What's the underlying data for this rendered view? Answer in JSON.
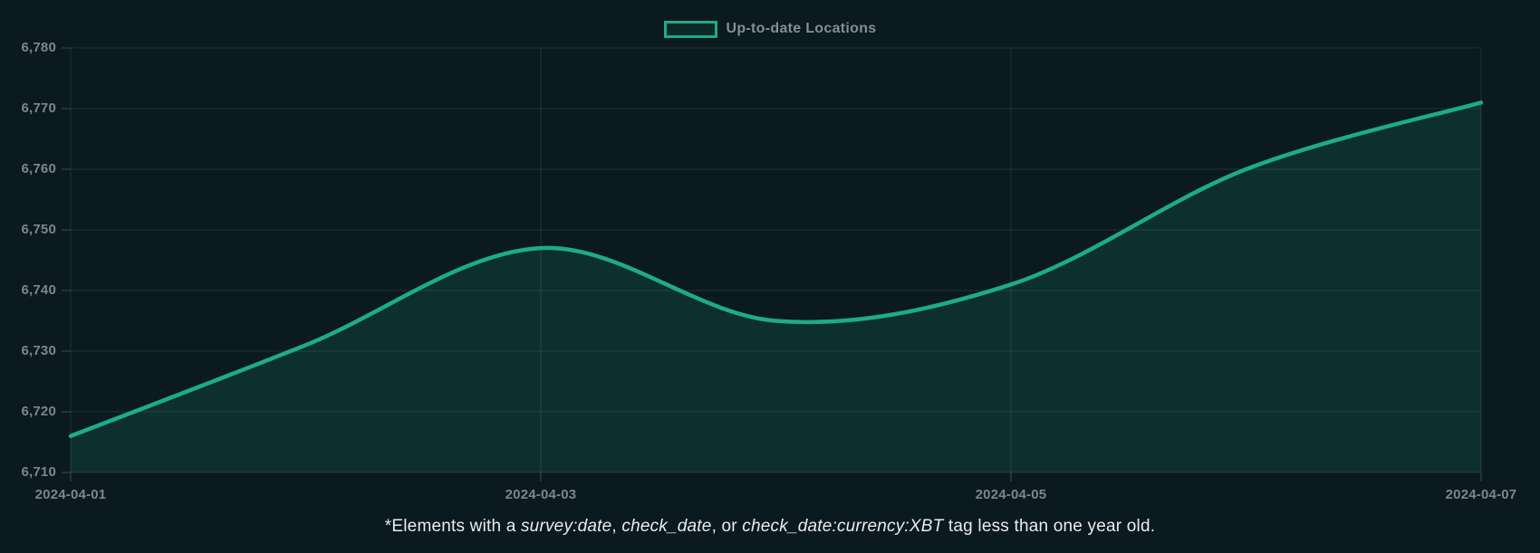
{
  "colors": {
    "background": "#0b1920",
    "accent": "#1dab88",
    "area_fill": "rgba(29,171,136,0.16)",
    "grid": "rgba(148,170,175,0.17)",
    "tick": "rgba(148,170,175,0.35)",
    "axis_text": "#7d868b",
    "legend_text": "#858e92",
    "legend_swatch_fill": "rgba(29,171,136,0.10)",
    "caption_text": "#e9ecec"
  },
  "legend": {
    "label": "Up-to-date Locations"
  },
  "chart_data": {
    "type": "area",
    "series_name": "Up-to-date Locations",
    "x": [
      "2024-04-01",
      "2024-04-02",
      "2024-04-03",
      "2024-04-04",
      "2024-04-05",
      "2024-04-06",
      "2024-04-07"
    ],
    "values": [
      6716,
      6731,
      6747,
      6735,
      6741,
      6760,
      6771
    ],
    "ylim": [
      6710,
      6780
    ],
    "y_ticks": [
      6710,
      6720,
      6730,
      6740,
      6750,
      6760,
      6770,
      6780
    ],
    "y_tick_labels": [
      "6,710",
      "6,720",
      "6,730",
      "6,740",
      "6,750",
      "6,760",
      "6,770",
      "6,780"
    ],
    "x_tick_labels": [
      "2024-04-01",
      "2024-04-03",
      "2024-04-05",
      "2024-04-07"
    ],
    "grid": true,
    "legend_position": "top-center",
    "line_style": "spline",
    "title": "",
    "xlabel": "",
    "ylabel": ""
  },
  "caption": {
    "segments": [
      {
        "text": "*Elements with a ",
        "italic": false
      },
      {
        "text": "survey:date",
        "italic": true
      },
      {
        "text": ", ",
        "italic": false
      },
      {
        "text": "check_date",
        "italic": true
      },
      {
        "text": ", or ",
        "italic": false
      },
      {
        "text": "check_date:currency:XBT",
        "italic": true
      },
      {
        "text": " tag less than one year old.",
        "italic": false
      }
    ]
  }
}
